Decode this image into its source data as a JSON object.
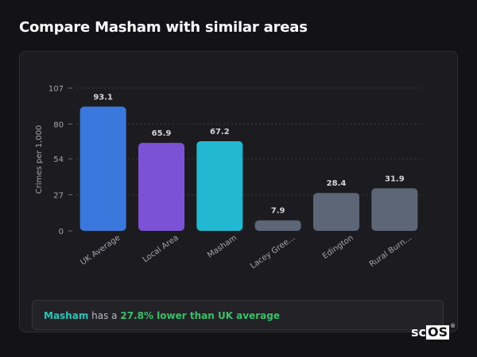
{
  "page": {
    "title": "Compare Masham with similar areas"
  },
  "chart_data": {
    "type": "bar",
    "ylabel": "Crimes per 1,000",
    "xlabel": "",
    "ylim": [
      0,
      107
    ],
    "yticks": [
      0,
      27,
      54,
      80,
      107
    ],
    "grid": true,
    "categories": [
      "UK Average",
      "Local Area",
      "Masham",
      "Lacey Gree...",
      "Edington",
      "Rural Burn..."
    ],
    "values": [
      93.1,
      65.9,
      67.2,
      7.9,
      28.4,
      31.9
    ],
    "value_labels": [
      "93.1",
      "65.9",
      "67.2",
      "7.9",
      "28.4",
      "31.9"
    ],
    "colors": [
      "#3a78dd",
      "#7b52d6",
      "#22b8d1",
      "#5d6677",
      "#5d6677",
      "#5d6677"
    ]
  },
  "insight": {
    "area": "Masham",
    "middle": "has a",
    "comparison": "27.8% lower than UK average"
  },
  "brand": {
    "prefix": "sc",
    "boxed": "OS",
    "mark": "®"
  }
}
